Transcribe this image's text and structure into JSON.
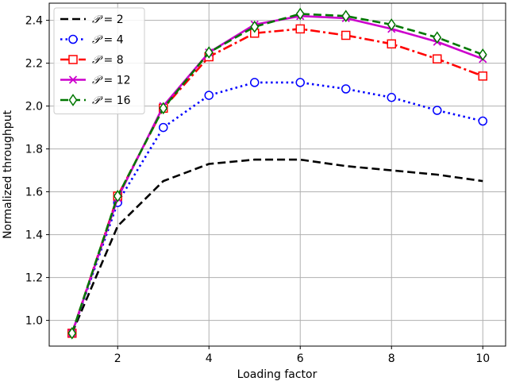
{
  "chart_data": {
    "type": "line",
    "title": "",
    "xlabel": "Loading factor",
    "ylabel": "Normalized throughput",
    "xlim": [
      0.5,
      10.5
    ],
    "ylim": [
      0.88,
      2.48
    ],
    "xticks": [
      2,
      4,
      6,
      8,
      10
    ],
    "yticks": [
      1.0,
      1.2,
      1.4,
      1.6,
      1.8,
      2.0,
      2.2,
      2.4
    ],
    "xtick_labels": [
      "2",
      "4",
      "6",
      "8",
      "10"
    ],
    "ytick_labels": [
      "1.0",
      "1.2",
      "1.4",
      "1.6",
      "1.8",
      "2.0",
      "2.2",
      "2.4"
    ],
    "grid": true,
    "legend_placement": "top-left",
    "x": [
      1,
      2,
      3,
      4,
      5,
      6,
      7,
      8,
      9,
      10
    ],
    "series": [
      {
        "name_prefix": "𝒫",
        "name_suffix": " = 2",
        "name": "𝒫 = 2",
        "color": "#000000",
        "dash": "dashed",
        "marker": "none",
        "values": [
          0.94,
          1.44,
          1.65,
          1.73,
          1.75,
          1.75,
          1.72,
          1.7,
          1.68,
          1.65
        ]
      },
      {
        "name_prefix": "𝒫",
        "name_suffix": " = 4",
        "name": "𝒫 = 4",
        "color": "#0000ff",
        "dash": "dotted",
        "marker": "circle",
        "values": [
          0.94,
          1.55,
          1.9,
          2.05,
          2.11,
          2.11,
          2.08,
          2.04,
          1.98,
          1.93
        ]
      },
      {
        "name_prefix": "𝒫",
        "name_suffix": " = 8",
        "name": "𝒫 = 8",
        "color": "#ff0000",
        "dash": "dashdot",
        "marker": "square",
        "values": [
          0.94,
          1.58,
          1.99,
          2.23,
          2.34,
          2.36,
          2.33,
          2.29,
          2.22,
          2.14
        ]
      },
      {
        "name_prefix": "𝒫",
        "name_suffix": " = 12",
        "name": "𝒫 = 12",
        "color": "#cc00cc",
        "dash": "solid",
        "marker": "x",
        "values": [
          0.94,
          1.57,
          2.0,
          2.25,
          2.38,
          2.42,
          2.41,
          2.36,
          2.3,
          2.22
        ]
      },
      {
        "name_prefix": "𝒫",
        "name_suffix": " = 16",
        "name": "𝒫 = 16",
        "color": "#007700",
        "dash": "dashed",
        "marker": "diamond",
        "values": [
          0.94,
          1.58,
          1.99,
          2.25,
          2.37,
          2.43,
          2.42,
          2.38,
          2.32,
          2.24
        ]
      }
    ]
  }
}
